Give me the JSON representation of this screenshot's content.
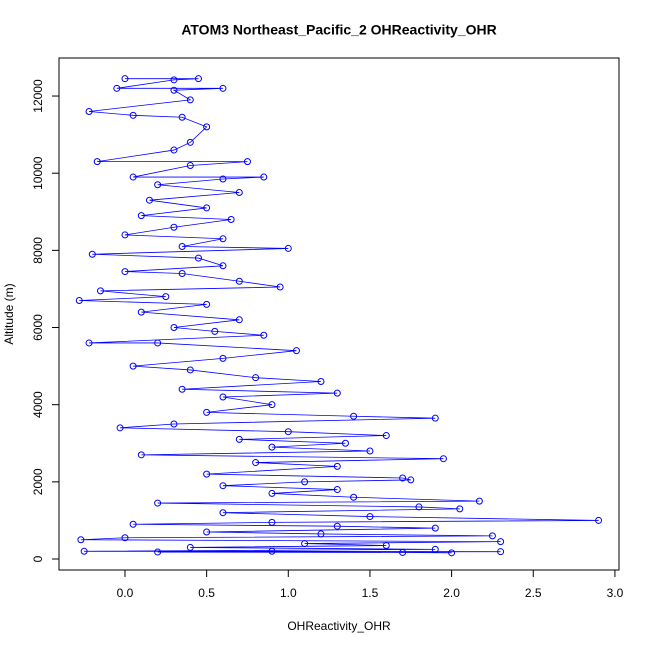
{
  "chart_data": {
    "type": "line",
    "title": "ATOM3 Northeast_Pacific_2 OHReactivity_OHR",
    "xlabel": "OHReactivity_OHR",
    "ylabel": "Altitude (m)",
    "color": "#0000ff",
    "x": [
      0.0,
      0.45,
      0.3,
      -0.05,
      0.6,
      0.3,
      0.4,
      -0.22,
      0.05,
      0.35,
      0.5,
      0.4,
      0.3,
      -0.17,
      0.75,
      0.4,
      0.05,
      0.85,
      0.6,
      0.2,
      0.7,
      0.15,
      0.5,
      0.1,
      0.65,
      0.3,
      0.0,
      0.6,
      0.35,
      1.0,
      -0.2,
      0.45,
      0.6,
      0.0,
      0.35,
      0.7,
      0.95,
      -0.15,
      0.25,
      -0.28,
      0.5,
      0.1,
      0.7,
      0.3,
      0.55,
      0.85,
      -0.22,
      0.2,
      1.05,
      0.6,
      0.05,
      0.4,
      0.8,
      1.2,
      0.35,
      1.3,
      0.6,
      0.9,
      0.5,
      1.4,
      1.9,
      0.3,
      -0.03,
      1.0,
      1.6,
      0.7,
      1.35,
      0.9,
      1.5,
      0.1,
      1.95,
      0.8,
      1.3,
      0.5,
      1.7,
      1.75,
      1.1,
      0.6,
      1.3,
      0.9,
      1.4,
      2.17,
      0.2,
      1.8,
      2.05,
      0.6,
      1.5,
      2.9,
      0.9,
      0.05,
      1.3,
      1.9,
      0.5,
      1.2,
      2.25,
      0.0,
      -0.27,
      2.3,
      1.1,
      1.6,
      0.4,
      1.9,
      -0.25,
      0.9,
      2.3,
      0.2,
      1.7,
      2.0
    ],
    "values": [
      12450,
      12450,
      12420,
      12200,
      12200,
      12150,
      11900,
      11600,
      11500,
      11450,
      11200,
      10800,
      10600,
      10300,
      10300,
      10200,
      9900,
      9900,
      9850,
      9700,
      9500,
      9300,
      9100,
      8900,
      8800,
      8600,
      8400,
      8300,
      8100,
      8050,
      7900,
      7800,
      7600,
      7450,
      7400,
      7200,
      7050,
      6950,
      6800,
      6700,
      6600,
      6400,
      6200,
      6000,
      5900,
      5800,
      5600,
      5600,
      5400,
      5200,
      5000,
      4900,
      4700,
      4600,
      4400,
      4300,
      4200,
      4000,
      3800,
      3700,
      3650,
      3500,
      3400,
      3300,
      3200,
      3100,
      3000,
      2900,
      2800,
      2700,
      2600,
      2500,
      2400,
      2200,
      2100,
      2050,
      2000,
      1900,
      1800,
      1700,
      1600,
      1500,
      1450,
      1350,
      1300,
      1200,
      1100,
      1000,
      950,
      900,
      850,
      800,
      700,
      650,
      600,
      550,
      500,
      450,
      400,
      350,
      300,
      250,
      200,
      200,
      190,
      180,
      170,
      160
    ],
    "xlim": [
      -0.404,
      3.025
    ],
    "ylim": [
      -285,
      12986
    ],
    "xticks": [
      {
        "value": 0,
        "label": "0.0"
      },
      0.5,
      {
        "value": 1,
        "label": "1.0"
      },
      1.5,
      {
        "value": 2,
        "label": "2.0"
      },
      2.5,
      {
        "value": 3,
        "label": "3.0"
      }
    ],
    "yticks": [
      0,
      2000,
      4000,
      6000,
      8000,
      10000,
      12000
    ]
  }
}
